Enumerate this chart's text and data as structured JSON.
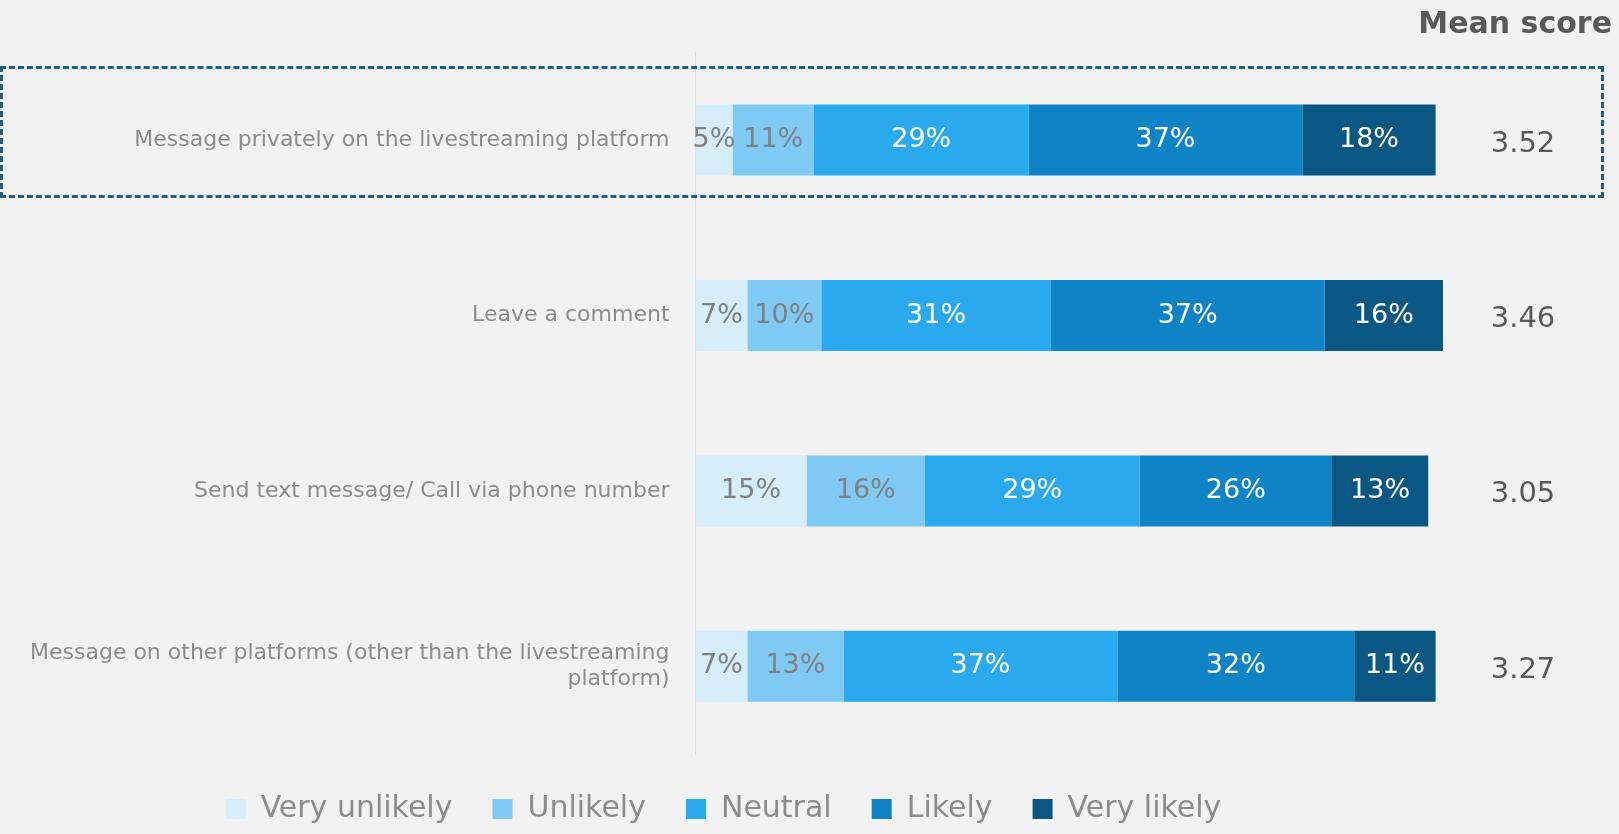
{
  "chart_data": {
    "type": "bar",
    "orientation": "horizontal",
    "stacked": true,
    "legend": "bottom",
    "grid": false,
    "tick_labels": "y",
    "categories": [
      "Message privately on the livestreaming platform",
      "Leave a comment",
      "Send text message/ Call via phone number",
      "Message on other platforms (other than the livestreaming platform)"
    ],
    "series": [
      {
        "name": "Very unlikely",
        "color": "#d6eefb",
        "values": [
          5,
          7,
          15,
          7
        ],
        "value_labels": [
          "5%",
          "7%",
          "15%",
          "7%"
        ]
      },
      {
        "name": "Unlikely",
        "color": "#7fcaf5",
        "values": [
          11,
          10,
          16,
          13
        ],
        "value_labels": [
          "11%",
          "10%",
          "16%",
          "13%"
        ]
      },
      {
        "name": "Neutral",
        "color": "#29a9ee",
        "values": [
          29,
          31,
          29,
          37
        ],
        "value_labels": [
          "29%",
          "31%",
          "29%",
          "37%"
        ]
      },
      {
        "name": "Likely",
        "color": "#0e84c6",
        "values": [
          37,
          37,
          26,
          32
        ],
        "value_labels": [
          "37%",
          "37%",
          "26%",
          "32%"
        ]
      },
      {
        "name": "Very likely",
        "color": "#0a5784",
        "values": [
          18,
          16,
          13,
          11
        ],
        "value_labels": [
          "18%",
          "16%",
          "13%",
          "11%"
        ]
      }
    ],
    "annotations": [
      "Mean score",
      "3.52",
      "3.46",
      "3.05",
      "3.27"
    ]
  }
}
